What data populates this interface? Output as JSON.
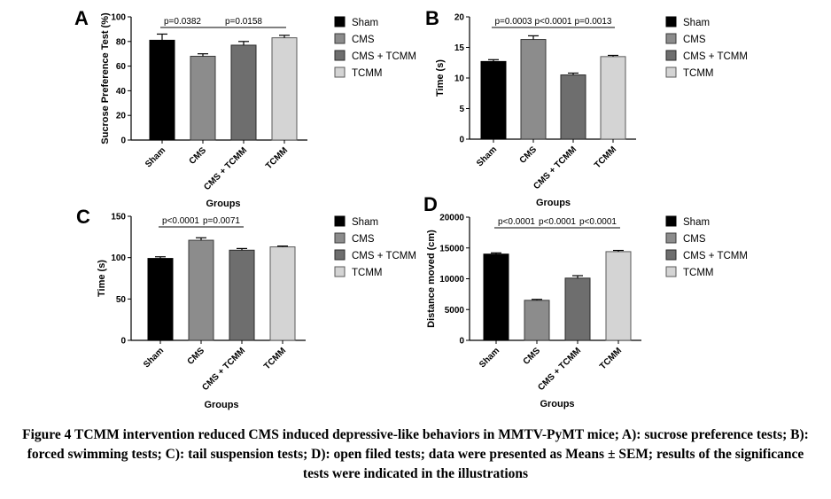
{
  "caption": "Figure 4 TCMM intervention reduced CMS induced depressive-like behaviors in MMTV-PyMT mice; A): sucrose preference tests; B): forced swimming tests; C): tail suspension tests; D): open filed tests; data were presented as Means ± SEM; results of the significance tests were indicated in the illustrations",
  "legend_entries": [
    {
      "name": "Sham",
      "color": "#000000"
    },
    {
      "name": "CMS",
      "color": "#8c8c8c"
    },
    {
      "name": "CMS + TCMM",
      "color": "#6e6e6e"
    },
    {
      "name": "TCMM",
      "color": "#d4d4d4"
    }
  ],
  "chart_data": [
    {
      "panel": "A",
      "type": "bar",
      "categories": [
        "Sham",
        "CMS",
        "CMS + TCMM",
        "TCMM"
      ],
      "values": [
        81,
        68,
        77,
        83
      ],
      "errors": [
        5,
        2,
        3,
        2
      ],
      "xlabel": "Groups",
      "ylabel": "Sucrose Preference Test (%)",
      "ylim": [
        0,
        100
      ],
      "yticks": [
        0,
        20,
        40,
        60,
        80,
        100
      ],
      "ytick_labels": [
        "0",
        "20",
        "40",
        "60",
        "80",
        "100"
      ],
      "comparisons": [
        {
          "from": 0,
          "to": 1,
          "label": "p=0.0382"
        },
        {
          "from": 1,
          "to": 3,
          "label": "p=0.0158"
        }
      ],
      "legend": "right"
    },
    {
      "panel": "B",
      "type": "bar",
      "categories": [
        "Sham",
        "CMS",
        "CMS + TCMM",
        "TCMM"
      ],
      "values": [
        12.7,
        16.3,
        10.5,
        13.5
      ],
      "errors": [
        0.3,
        0.6,
        0.3,
        0.2
      ],
      "xlabel": "Groups",
      "ylabel": "Time (s)",
      "ylim": [
        0,
        20
      ],
      "yticks": [
        0,
        5,
        10,
        15,
        20
      ],
      "ytick_labels": [
        "0",
        "5",
        "10",
        "15",
        "20"
      ],
      "comparisons": [
        {
          "from": 0,
          "to": 1,
          "label": "p=0.0003"
        },
        {
          "from": 1,
          "to": 2,
          "label": "p<0.0001"
        },
        {
          "from": 2,
          "to": 3,
          "label": "p=0.0013"
        }
      ],
      "legend": "right"
    },
    {
      "panel": "C",
      "type": "bar",
      "categories": [
        "Sham",
        "CMS",
        "CMS + TCMM",
        "TCMM"
      ],
      "values": [
        99,
        121,
        109,
        113
      ],
      "errors": [
        2,
        3,
        2,
        1
      ],
      "xlabel": "Groups",
      "ylabel": "Time (s)",
      "ylim": [
        0,
        150
      ],
      "yticks": [
        0,
        50,
        100,
        150
      ],
      "ytick_labels": [
        "0",
        "50",
        "100",
        "150"
      ],
      "comparisons": [
        {
          "from": 0,
          "to": 1,
          "label": "p<0.0001"
        },
        {
          "from": 1,
          "to": 2,
          "label": "p=0.0071"
        }
      ],
      "legend": "right"
    },
    {
      "panel": "D",
      "type": "bar",
      "categories": [
        "Sham",
        "CMS",
        "CMS + TCMM",
        "TCMM"
      ],
      "values": [
        14000,
        6500,
        10100,
        14400
      ],
      "errors": [
        200,
        150,
        400,
        200
      ],
      "xlabel": "Groups",
      "ylabel": "Distance moved (cm)",
      "ylim": [
        0,
        20000
      ],
      "yticks": [
        0,
        5000,
        10000,
        15000,
        20000
      ],
      "ytick_labels": [
        "0",
        "5000",
        "10000",
        "15000",
        "20000"
      ],
      "comparisons": [
        {
          "from": 0,
          "to": 1,
          "label": "p<0.0001"
        },
        {
          "from": 1,
          "to": 2,
          "label": "p<0.0001"
        },
        {
          "from": 2,
          "to": 3,
          "label": "p<0.0001"
        }
      ],
      "legend": "right"
    }
  ]
}
